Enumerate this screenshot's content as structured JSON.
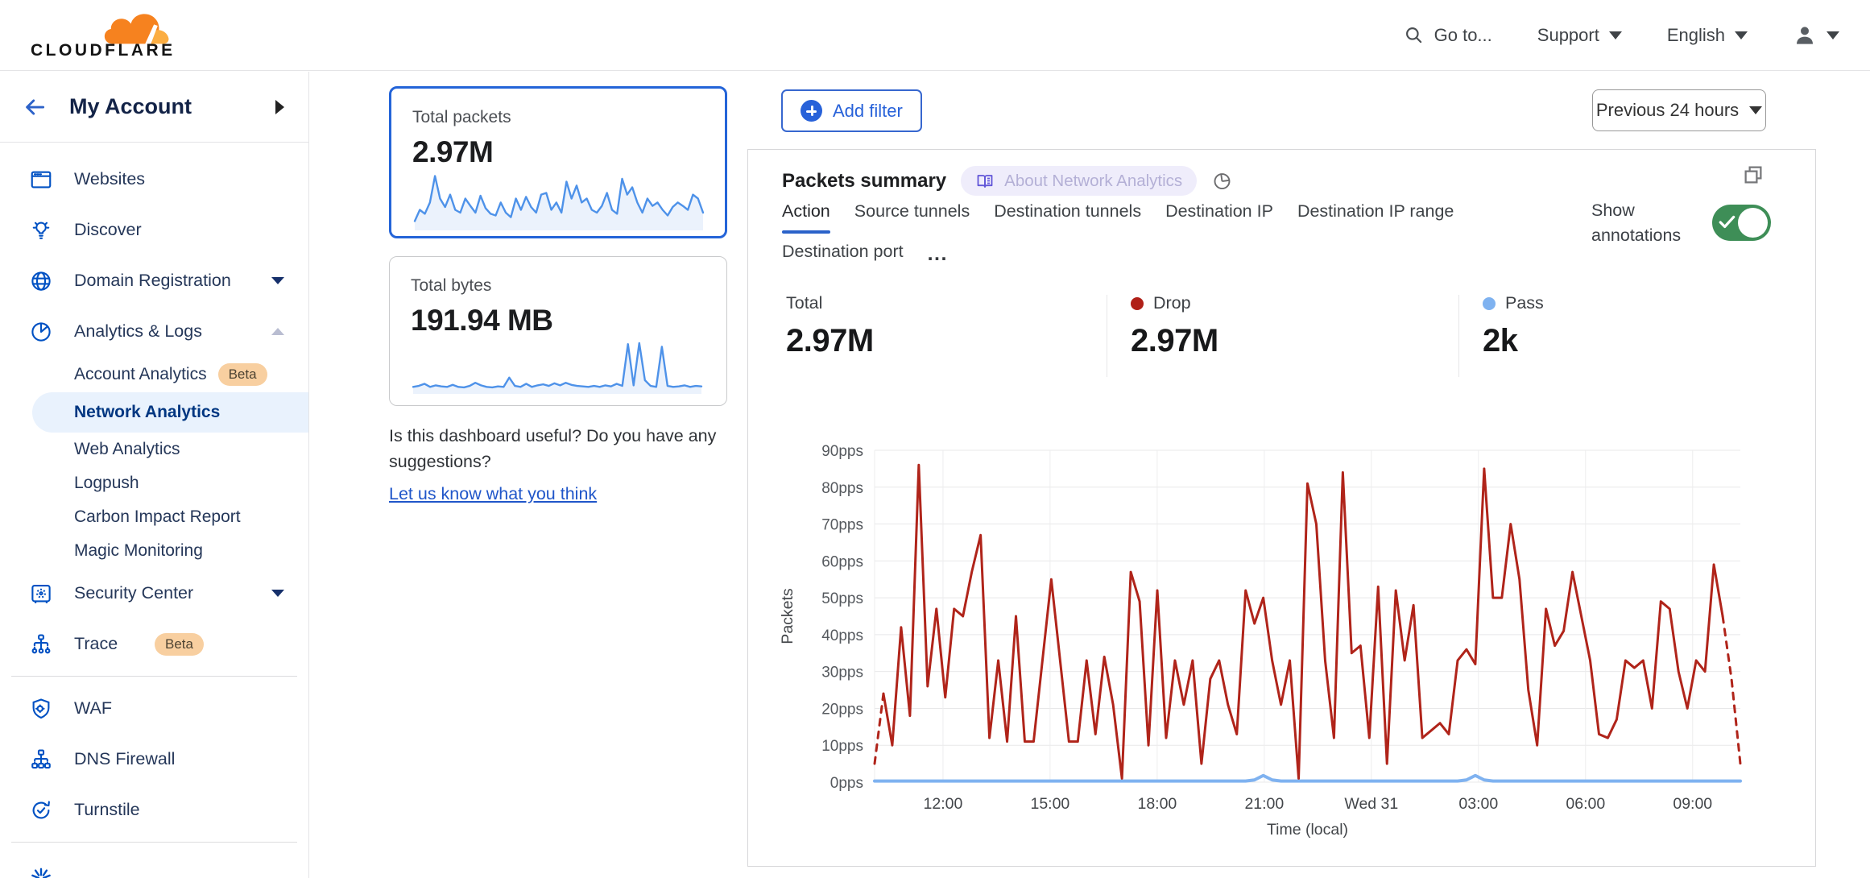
{
  "header": {
    "logo_text": "CLOUDFLARE",
    "goto_label": "Go to...",
    "support_label": "Support",
    "language_label": "English"
  },
  "sidebar": {
    "account_title": "My Account",
    "items": {
      "websites": {
        "label": "Websites"
      },
      "discover": {
        "label": "Discover"
      },
      "domain_registration": {
        "label": "Domain Registration"
      },
      "analytics_logs": {
        "label": "Analytics & Logs"
      },
      "account_analytics": {
        "label": "Account Analytics",
        "badge": "Beta"
      },
      "network_analytics": {
        "label": "Network Analytics",
        "selected": true
      },
      "web_analytics": {
        "label": "Web Analytics"
      },
      "logpush": {
        "label": "Logpush"
      },
      "carbon_impact": {
        "label": "Carbon Impact Report"
      },
      "magic_monitoring": {
        "label": "Magic Monitoring"
      },
      "security_center": {
        "label": "Security Center"
      },
      "trace": {
        "label": "Trace",
        "badge": "Beta"
      },
      "waf": {
        "label": "WAF"
      },
      "dns_firewall": {
        "label": "DNS Firewall"
      },
      "turnstile": {
        "label": "Turnstile"
      }
    }
  },
  "metric_cards": {
    "packets": {
      "title": "Total packets",
      "value": "2.97M",
      "selected": true
    },
    "bytes": {
      "title": "Total bytes",
      "value": "191.94 MB",
      "selected": false
    }
  },
  "feedback": {
    "question": "Is this dashboard useful? Do you have any suggestions?",
    "link_label": "Let us know what you think"
  },
  "filter_bar": {
    "add_filter_label": "Add filter",
    "time_range_label": "Previous 24 hours"
  },
  "summary_card": {
    "title": "Packets summary",
    "about_badge": "About Network Analytics",
    "annotations_label": "Show annotations",
    "annotations_on": true,
    "tabs": [
      "Action",
      "Source tunnels",
      "Destination tunnels",
      "Destination IP",
      "Destination IP range",
      "Destination port"
    ],
    "active_tab": "Action",
    "overflow_label": "...",
    "stats": [
      {
        "label": "Total",
        "value": "2.97M",
        "dot": null
      },
      {
        "label": "Drop",
        "value": "2.97M",
        "dot": "#b02018"
      },
      {
        "label": "Pass",
        "value": "2k",
        "dot": "#7fb2f0"
      }
    ]
  },
  "colors": {
    "accent_blue": "#0051c3",
    "drop_red": "#b0241a",
    "pass_blue": "#7fb2f0",
    "toggle_green": "#3e8e57",
    "brand_orange": "#f6821f",
    "brand_orange_light": "#fbad41",
    "selected_nav_bg": "#e9f2fd",
    "beta_badge_bg": "#f8cfa0",
    "sparkline_blue": "#4e92e9"
  },
  "icon_names": [
    "search-icon",
    "caret-down-icon",
    "user-icon",
    "back-arrow-icon",
    "chevron-right-icon",
    "browser-icon",
    "bulb-icon",
    "globe-icon",
    "pie-chart-icon",
    "safe-icon",
    "trace-icon",
    "shield-gear-icon",
    "hierarchy-icon",
    "refresh-check-icon",
    "starburst-icon",
    "plus-icon",
    "book-icon",
    "chart-pie-icon",
    "expand-icon",
    "check-icon"
  ],
  "chart_data": [
    {
      "id": "packets-summary-chart",
      "type": "line",
      "title": "Packets summary",
      "xlabel": "Time (local)",
      "ylabel": "Packets",
      "ylim": [
        0,
        90
      ],
      "grid": true,
      "legend_position": "top-stats",
      "y_ticks": [
        {
          "v": 0,
          "label": "0pps"
        },
        {
          "v": 10,
          "label": "10pps"
        },
        {
          "v": 20,
          "label": "20pps"
        },
        {
          "v": 30,
          "label": "30pps"
        },
        {
          "v": 40,
          "label": "40pps"
        },
        {
          "v": 50,
          "label": "50pps"
        },
        {
          "v": 60,
          "label": "60pps"
        },
        {
          "v": 70,
          "label": "70pps"
        },
        {
          "v": 80,
          "label": "80pps"
        },
        {
          "v": 90,
          "label": "90pps"
        }
      ],
      "x_ticks": [
        {
          "pos": 0.079,
          "label": "12:00"
        },
        {
          "pos": 0.2027,
          "label": "15:00"
        },
        {
          "pos": 0.3264,
          "label": "18:00"
        },
        {
          "pos": 0.4501,
          "label": "21:00"
        },
        {
          "pos": 0.5738,
          "label": "Wed 31"
        },
        {
          "pos": 0.6975,
          "label": "03:00"
        },
        {
          "pos": 0.8212,
          "label": "06:00"
        },
        {
          "pos": 0.9449,
          "label": "09:00"
        }
      ],
      "series": [
        {
          "name": "Drop",
          "color": "#b0241a",
          "width": 3,
          "dashed_head": 1,
          "dashed_tail": 2,
          "values": [
            5,
            24,
            10,
            42,
            18,
            86,
            26,
            47,
            23,
            47,
            45,
            57,
            67,
            12,
            33,
            11,
            45,
            11,
            11,
            33,
            55,
            33,
            11,
            11,
            33,
            13,
            34,
            21,
            1,
            57,
            49,
            10,
            52,
            12,
            33,
            21,
            33,
            5,
            28,
            33,
            21,
            13,
            52,
            43,
            50,
            33,
            21,
            33,
            1,
            81,
            70,
            33,
            12,
            84,
            35,
            37,
            12,
            53,
            5,
            52,
            33,
            48,
            12,
            14,
            16,
            13,
            33,
            36,
            32,
            85,
            50,
            50,
            70,
            55,
            25,
            10,
            47,
            37,
            41,
            57,
            45,
            33,
            13,
            12,
            17,
            33,
            31,
            33,
            20,
            49,
            47,
            30,
            20,
            33,
            30,
            59,
            45,
            28,
            5
          ]
        },
        {
          "name": "Pass",
          "color": "#7fb2f0",
          "width": 4,
          "dashed_head": 0,
          "dashed_tail": 0,
          "values": [
            0.3,
            0.3,
            0.3,
            0.3,
            0.3,
            0.3,
            0.3,
            0.3,
            0.3,
            0.3,
            0.3,
            0.3,
            0.3,
            0.3,
            0.3,
            0.3,
            0.3,
            0.3,
            0.3,
            0.3,
            0.3,
            0.3,
            0.3,
            0.3,
            0.3,
            0.3,
            0.3,
            0.3,
            0.3,
            0.3,
            0.3,
            0.3,
            0.3,
            0.3,
            0.3,
            0.3,
            0.3,
            0.3,
            0.3,
            0.3,
            0.3,
            0.3,
            0.3,
            0.6,
            1.8,
            0.6,
            0.3,
            0.3,
            0.3,
            0.3,
            0.3,
            0.3,
            0.3,
            0.3,
            0.3,
            0.3,
            0.3,
            0.3,
            0.3,
            0.3,
            0.3,
            0.3,
            0.3,
            0.3,
            0.3,
            0.3,
            0.3,
            0.6,
            1.8,
            0.6,
            0.3,
            0.3,
            0.3,
            0.3,
            0.3,
            0.3,
            0.3,
            0.3,
            0.3,
            0.3,
            0.3,
            0.3,
            0.3,
            0.3,
            0.3,
            0.3,
            0.3,
            0.3,
            0.3,
            0.3,
            0.3,
            0.3,
            0.3,
            0.3,
            0.3,
            0.3,
            0.3,
            0.3,
            0.3
          ]
        }
      ]
    },
    {
      "id": "total-packets-sparkline",
      "type": "line",
      "title": "Total packets sparkline",
      "color": "#4e92e9",
      "ylim": [
        0,
        100
      ],
      "values": [
        15,
        35,
        28,
        48,
        95,
        55,
        40,
        62,
        35,
        30,
        55,
        42,
        30,
        60,
        38,
        28,
        25,
        48,
        30,
        22,
        55,
        35,
        58,
        40,
        30,
        62,
        65,
        35,
        48,
        30,
        85,
        55,
        78,
        48,
        55,
        35,
        30,
        42,
        65,
        35,
        28,
        90,
        62,
        75,
        48,
        30,
        55,
        42,
        48,
        35,
        25,
        40,
        48,
        42,
        35,
        62,
        55,
        30
      ]
    },
    {
      "id": "total-bytes-sparkline",
      "type": "line",
      "title": "Total bytes sparkline",
      "color": "#4e92e9",
      "ylim": [
        0,
        100
      ],
      "values": [
        12,
        14,
        18,
        12,
        15,
        13,
        12,
        16,
        12,
        11,
        14,
        20,
        15,
        12,
        11,
        13,
        12,
        30,
        14,
        12,
        18,
        12,
        15,
        17,
        14,
        19,
        15,
        20,
        16,
        14,
        13,
        12,
        14,
        12,
        15,
        13,
        18,
        14,
        95,
        15,
        97,
        25,
        14,
        12,
        90,
        14,
        12,
        13,
        15,
        12,
        14,
        13
      ]
    }
  ]
}
